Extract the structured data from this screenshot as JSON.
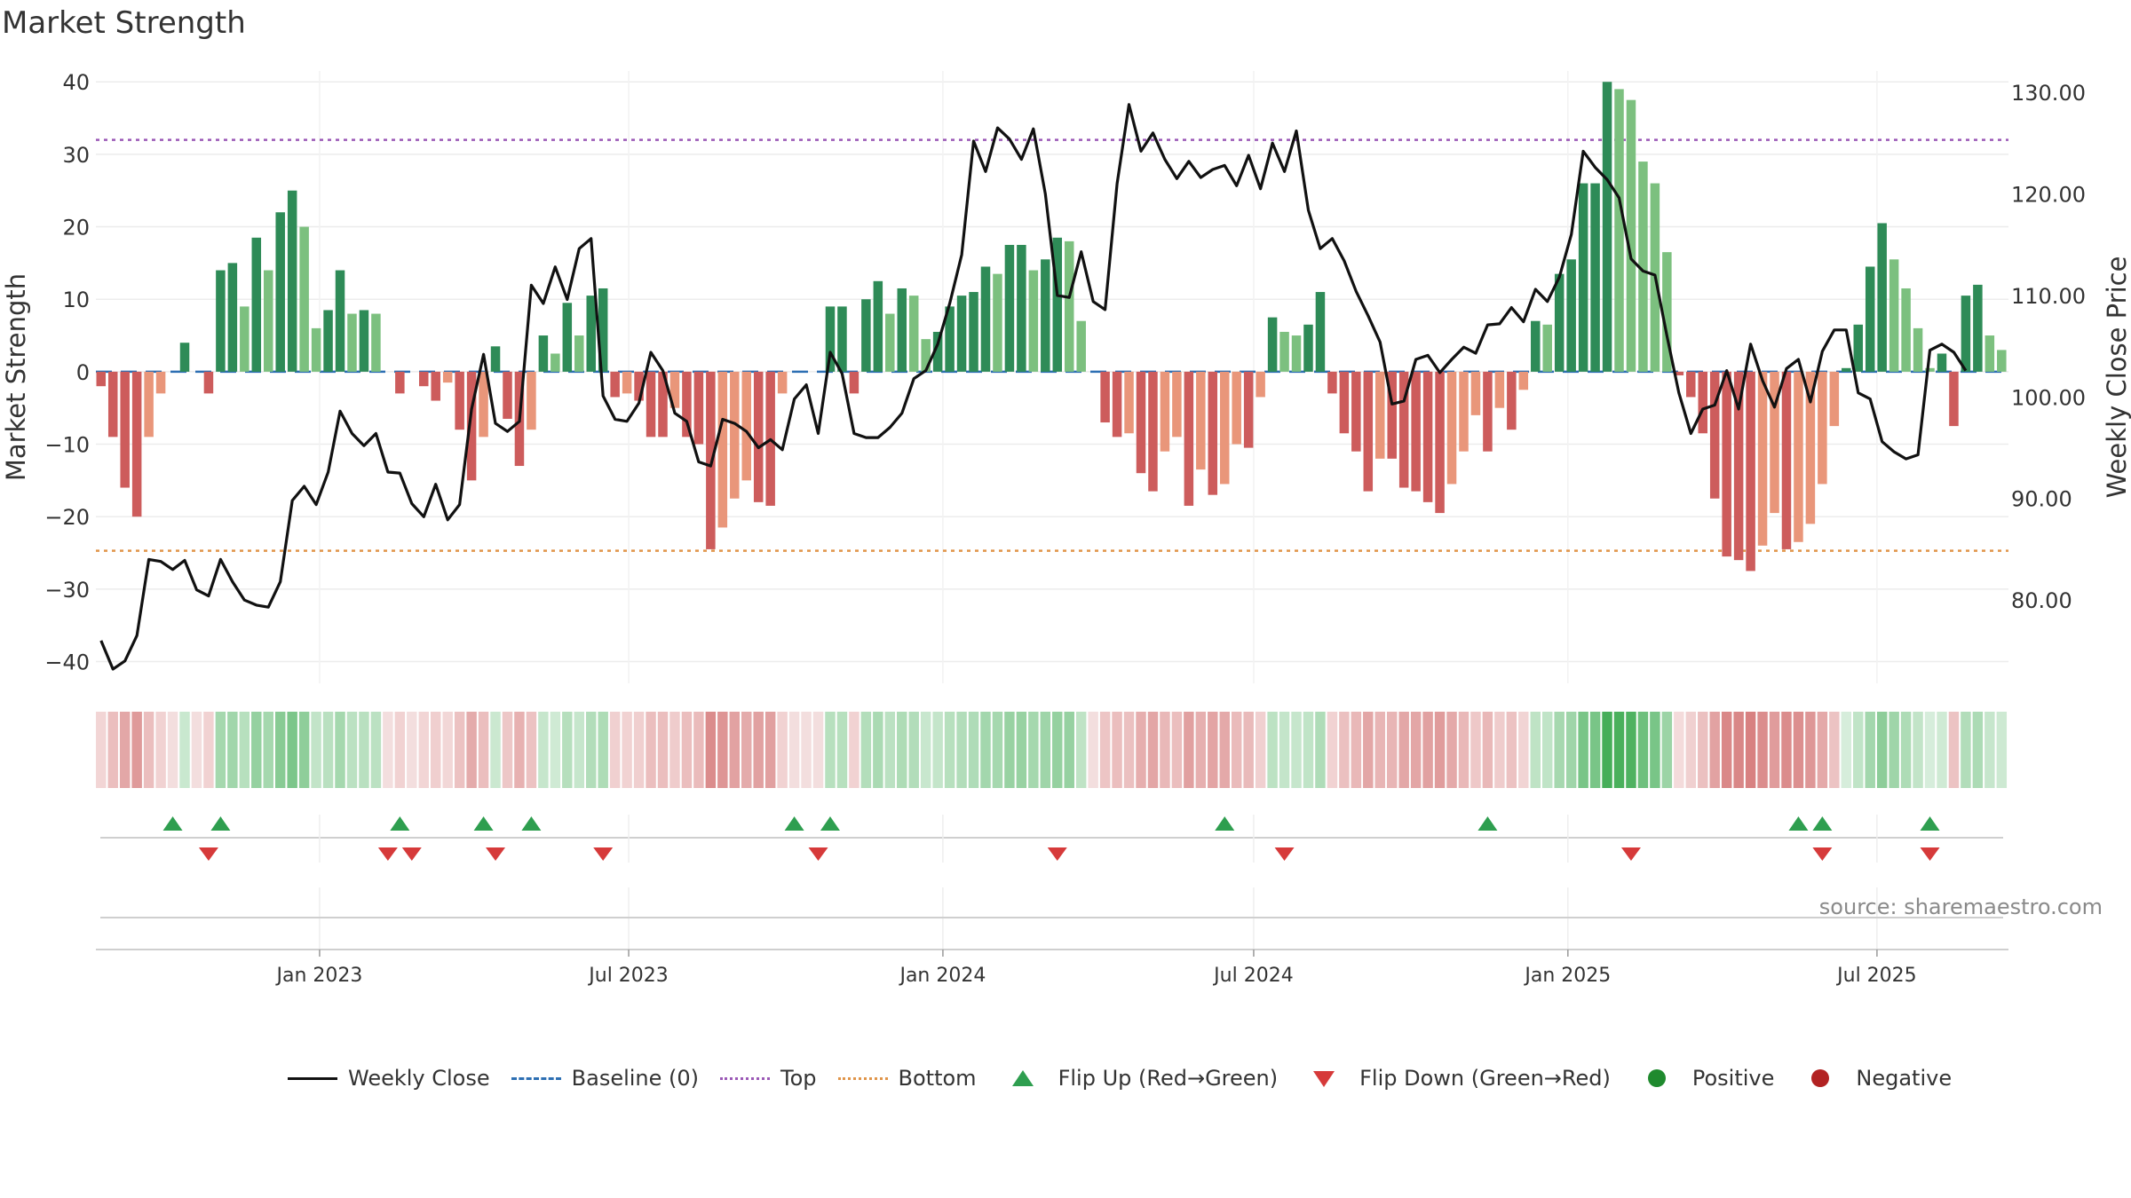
{
  "title": "Market Strength",
  "source": "source: sharemaestro.com",
  "colors": {
    "strong_green": "#2e8b57",
    "light_green": "#7cc07f",
    "strong_red": "#cd5c5c",
    "light_red": "#e9967a",
    "price_line": "#111111",
    "baseline": "#2d6fb3",
    "top_line": "#9b59b6",
    "bottom_line": "#e0954a",
    "flip_up": "#2e9e4f",
    "flip_down": "#d63a3a",
    "positive": "#1f8a2e",
    "negative": "#b22222"
  },
  "legend": [
    {
      "label": "Weekly Close",
      "kind": "solid-line"
    },
    {
      "label": "Baseline (0)",
      "kind": "dash-line"
    },
    {
      "label": "Top",
      "kind": "dot-purple"
    },
    {
      "label": "Bottom",
      "kind": "dot-orange"
    },
    {
      "label": "Flip Up (Red→Green)",
      "kind": "tri-up"
    },
    {
      "label": "Flip Down (Green→Red)",
      "kind": "tri-down"
    },
    {
      "label": "Positive",
      "kind": "dot-green"
    },
    {
      "label": "Negative",
      "kind": "dot-red"
    }
  ],
  "chart_data": {
    "type": "bar",
    "ylabel": "Market Strength",
    "y2label": "Weekly Close Price",
    "ylim": [
      -43,
      41.5
    ],
    "y2lim": [
      71.8,
      132.1
    ],
    "yticks": [
      "40",
      "30",
      "20",
      "10",
      "0",
      "−10",
      "−20",
      "−30",
      "−40"
    ],
    "y2ticks": [
      "130.00",
      "120.00",
      "110.00",
      "100.00",
      "90.00",
      "80.00"
    ],
    "x_start": "2022-08-26",
    "week_step_days": 7,
    "xticks": [
      {
        "date": "2023-01-01",
        "label": "Jan 2023"
      },
      {
        "date": "2023-07-01",
        "label": "Jul 2023"
      },
      {
        "date": "2024-01-01",
        "label": "Jan 2024"
      },
      {
        "date": "2024-07-01",
        "label": "Jul 2024"
      },
      {
        "date": "2025-01-01",
        "label": "Jan 2025"
      },
      {
        "date": "2025-07-01",
        "label": "Jul 2025"
      }
    ],
    "top_level": 32,
    "bottom_level": -24.7,
    "baseline": 0,
    "strength": [
      -2,
      -9,
      -16,
      -20,
      -9,
      -3,
      0,
      4,
      0,
      -3,
      14,
      15,
      9,
      18.5,
      14,
      22,
      25,
      20,
      6,
      8.5,
      14,
      8,
      8.5,
      8,
      0,
      -3,
      0,
      -2,
      -4,
      -1.5,
      -8,
      -15,
      -9,
      3.5,
      -6.5,
      -13,
      -8,
      5,
      2.5,
      9.5,
      5,
      10.5,
      11.5,
      -3.5,
      -3,
      -4,
      -9,
      -9,
      -5,
      -9,
      -10,
      -24.5,
      -21.5,
      -17.5,
      -15,
      -18,
      -18.5,
      -3,
      0,
      0,
      0,
      9,
      9,
      -3,
      10,
      12.5,
      8,
      11.5,
      10.5,
      4.5,
      5.5,
      9,
      10.5,
      11,
      14.5,
      13.5,
      17.5,
      17.5,
      14,
      15.5,
      18.5,
      18,
      7,
      0,
      -7,
      -9,
      -8.5,
      -14,
      -16.5,
      -11,
      -9,
      -18.5,
      -13.5,
      -17,
      -15.5,
      -10,
      -10.5,
      -3.5,
      7.5,
      5.5,
      5,
      6.5,
      11,
      -3,
      -8.5,
      -11,
      -16.5,
      -12,
      -12,
      -16,
      -16.5,
      -18,
      -19.5,
      -15.5,
      -11,
      -6,
      -11,
      -5,
      -8,
      -2.5,
      7,
      6.5,
      13.5,
      15.5,
      26,
      26,
      40,
      39,
      37.5,
      29,
      26,
      16.5,
      -0.5,
      -3.5,
      -8.5,
      -17.5,
      -25.5,
      -26,
      -27.5,
      -24,
      -19.5,
      -24.5,
      -23.5,
      -21,
      -15.5,
      -7.5,
      0.5,
      6.5,
      14.5,
      20.5,
      15.5,
      11.5,
      6,
      0.5,
      2.5,
      -7.5,
      10.5,
      12,
      5,
      3
    ],
    "close": [
      76,
      73.2,
      74,
      76.5,
      84,
      83.8,
      83,
      83.9,
      81,
      80.4,
      84,
      81.8,
      80,
      79.5,
      79.3,
      81.8,
      89.8,
      91.2,
      89.4,
      92.6,
      98.6,
      96.4,
      95.2,
      96.4,
      92.6,
      92.5,
      89.5,
      88.2,
      91.4,
      87.9,
      89.4,
      98.8,
      104.2,
      97.4,
      96.6,
      97.6,
      111,
      109.2,
      112.8,
      109.6,
      114.6,
      115.6,
      100.1,
      97.8,
      97.6,
      99.4,
      104.4,
      102.6,
      98.4,
      97.6,
      93.6,
      93.2,
      97.8,
      97.4,
      96.6,
      95,
      95.8,
      94.8,
      99.8,
      101.2,
      96.4,
      104.4,
      102.3,
      96.4,
      96,
      96,
      97,
      98.4,
      101.8,
      102.6,
      105.2,
      109.2,
      114,
      125.2,
      122.2,
      126.5,
      125.4,
      123.4,
      126.4,
      120,
      110,
      109.8,
      114.3,
      109.4,
      108.6,
      121,
      128.8,
      124.2,
      126,
      123.4,
      121.5,
      123.2,
      121.6,
      122.4,
      122.8,
      120.8,
      123.8,
      120.5,
      125,
      122.2,
      126.2,
      118.4,
      114.6,
      115.6,
      113.4,
      110.4,
      108,
      105.4,
      99.3,
      99.6,
      103.7,
      104.1,
      102.4,
      103.7,
      104.9,
      104.3,
      107.1,
      107.2,
      108.8,
      107.4,
      110.6,
      109.4,
      111.8,
      116,
      124.2,
      122.6,
      121.4,
      119.6,
      113.6,
      112.4,
      112,
      106,
      100.4,
      96.4,
      98.8,
      99.2,
      102.6,
      98.8,
      105.2,
      101.6,
      99,
      102.8,
      103.7,
      99.5,
      104.5,
      106.6,
      106.6,
      100.4,
      99.8,
      95.6,
      94.6,
      93.9,
      94.3,
      104.6,
      105.2,
      104.4,
      102.6
    ],
    "flip_up_weeks": [
      6,
      10,
      25,
      32,
      36,
      58,
      61,
      94,
      116,
      142,
      144,
      153
    ],
    "flip_down_weeks": [
      9,
      24,
      26,
      33,
      42,
      60,
      80,
      99,
      128,
      144,
      153
    ]
  }
}
